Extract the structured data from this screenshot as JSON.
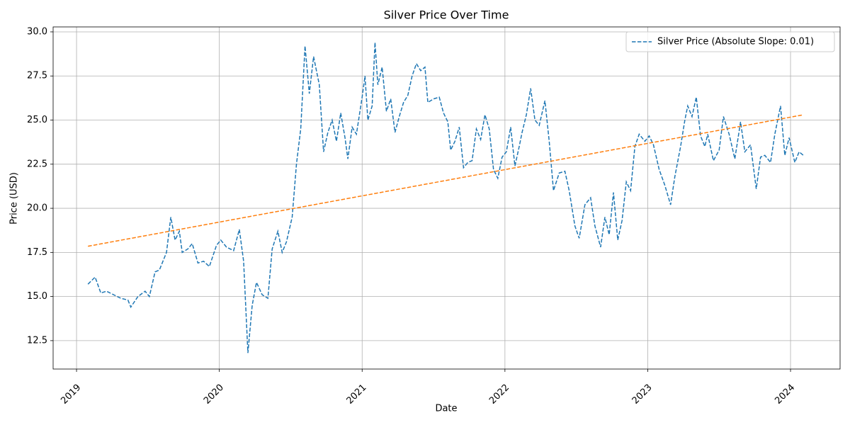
{
  "chart_data": {
    "type": "line",
    "title": "Silver Price Over Time",
    "xlabel": "Date",
    "ylabel": "Price (USD)",
    "xlim": [
      2018.836,
      2024.347
    ],
    "xticks": [
      2019,
      2020,
      2021,
      2022,
      2023,
      2024
    ],
    "ylim": [
      10.89,
      30.28
    ],
    "yticks": [
      12.5,
      {
        "value": 15,
        "label": "15.0"
      },
      17.5,
      {
        "value": 20,
        "label": "20.0"
      },
      22.5,
      {
        "value": 25,
        "label": "25.0"
      },
      27.5,
      {
        "value": 30,
        "label": "30.0"
      }
    ],
    "grid": true,
    "legend": "upper right",
    "series": [
      {
        "name": "Silver Price (Absolute Slope: 0.01)",
        "color": "#1f77b4",
        "dashed": true,
        "x": [
          2019.08,
          2019.13,
          2019.17,
          2019.21,
          2019.26,
          2019.31,
          2019.36,
          2019.38,
          2019.43,
          2019.48,
          2019.51,
          2019.55,
          2019.58,
          2019.61,
          2019.63,
          2019.66,
          2019.69,
          2019.72,
          2019.74,
          2019.78,
          2019.81,
          2019.85,
          2019.89,
          2019.93,
          2019.98,
          2020.01,
          2020.05,
          2020.1,
          2020.14,
          2020.17,
          2020.2,
          2020.23,
          2020.26,
          2020.3,
          2020.34,
          2020.37,
          2020.41,
          2020.44,
          2020.47,
          2020.51,
          2020.54,
          2020.57,
          2020.6,
          2020.63,
          2020.66,
          2020.7,
          2020.73,
          2020.76,
          2020.79,
          2020.82,
          2020.85,
          2020.88,
          2020.9,
          2020.93,
          2020.96,
          2021.0,
          2021.02,
          2021.04,
          2021.07,
          2021.09,
          2021.11,
          2021.14,
          2021.17,
          2021.2,
          2021.23,
          2021.26,
          2021.29,
          2021.32,
          2021.35,
          2021.38,
          2021.41,
          2021.44,
          2021.46,
          2021.5,
          2021.54,
          2021.57,
          2021.6,
          2021.62,
          2021.65,
          2021.68,
          2021.71,
          2021.74,
          2021.77,
          2021.8,
          2021.83,
          2021.86,
          2021.89,
          2021.92,
          2021.95,
          2021.98,
          2022.01,
          2022.04,
          2022.07,
          2022.1,
          2022.12,
          2022.15,
          2022.18,
          2022.21,
          2022.24,
          2022.28,
          2022.31,
          2022.34,
          2022.38,
          2022.42,
          2022.45,
          2022.49,
          2022.52,
          2022.56,
          2022.6,
          2022.63,
          2022.67,
          2022.7,
          2022.73,
          2022.76,
          2022.79,
          2022.82,
          2022.85,
          2022.88,
          2022.91,
          2022.94,
          2022.98,
          2023.01,
          2023.04,
          2023.08,
          2023.12,
          2023.16,
          2023.19,
          2023.23,
          2023.26,
          2023.28,
          2023.31,
          2023.34,
          2023.37,
          2023.4,
          2023.42,
          2023.46,
          2023.5,
          2023.53,
          2023.57,
          2023.61,
          2023.65,
          2023.68,
          2023.72,
          2023.76,
          2023.79,
          2023.82,
          2023.86,
          2023.89,
          2023.93,
          2023.96,
          2023.99,
          2024.03,
          2024.06,
          2024.09
        ],
        "values": [
          15.7,
          16.1,
          15.2,
          15.3,
          15.1,
          14.9,
          14.8,
          14.4,
          15.0,
          15.3,
          15.0,
          16.4,
          16.5,
          17.1,
          17.5,
          19.5,
          18.2,
          18.7,
          17.5,
          17.7,
          18.0,
          16.9,
          17.0,
          16.7,
          17.9,
          18.2,
          17.8,
          17.6,
          18.8,
          17.0,
          11.8,
          14.5,
          15.8,
          15.1,
          14.9,
          17.7,
          18.7,
          17.5,
          18.1,
          19.5,
          22.5,
          24.5,
          29.2,
          26.5,
          28.6,
          27.0,
          23.2,
          24.3,
          25.0,
          23.8,
          25.4,
          24.0,
          22.8,
          24.6,
          24.2,
          26.3,
          27.5,
          25.0,
          25.8,
          29.4,
          27.0,
          28.0,
          25.5,
          26.2,
          24.3,
          25.2,
          26.0,
          26.4,
          27.5,
          28.2,
          27.8,
          28.0,
          26.0,
          26.2,
          26.3,
          25.4,
          24.9,
          23.3,
          23.8,
          24.6,
          22.3,
          22.6,
          22.7,
          24.5,
          23.9,
          25.3,
          24.5,
          22.2,
          21.7,
          22.9,
          23.2,
          24.6,
          22.4,
          23.5,
          24.3,
          25.3,
          26.8,
          25.0,
          24.7,
          26.1,
          23.8,
          21.0,
          22.0,
          22.1,
          21.0,
          19.0,
          18.3,
          20.2,
          20.6,
          19.0,
          17.8,
          19.5,
          18.5,
          20.9,
          18.2,
          19.3,
          21.5,
          21.0,
          23.5,
          24.2,
          23.8,
          24.1,
          23.6,
          22.2,
          21.3,
          20.2,
          21.8,
          23.5,
          25.0,
          25.8,
          25.2,
          26.3,
          24.1,
          23.5,
          24.2,
          22.7,
          23.3,
          25.2,
          24.2,
          22.8,
          24.9,
          23.2,
          23.6,
          21.1,
          22.9,
          23.0,
          22.6,
          24.2,
          25.8,
          23.0,
          24.0,
          22.6,
          23.2,
          23.0
        ]
      },
      {
        "color": "#ff7f0e",
        "dashed": true,
        "x": [
          2019.08,
          2024.09
        ],
        "values": [
          17.85,
          25.3
        ]
      }
    ]
  }
}
